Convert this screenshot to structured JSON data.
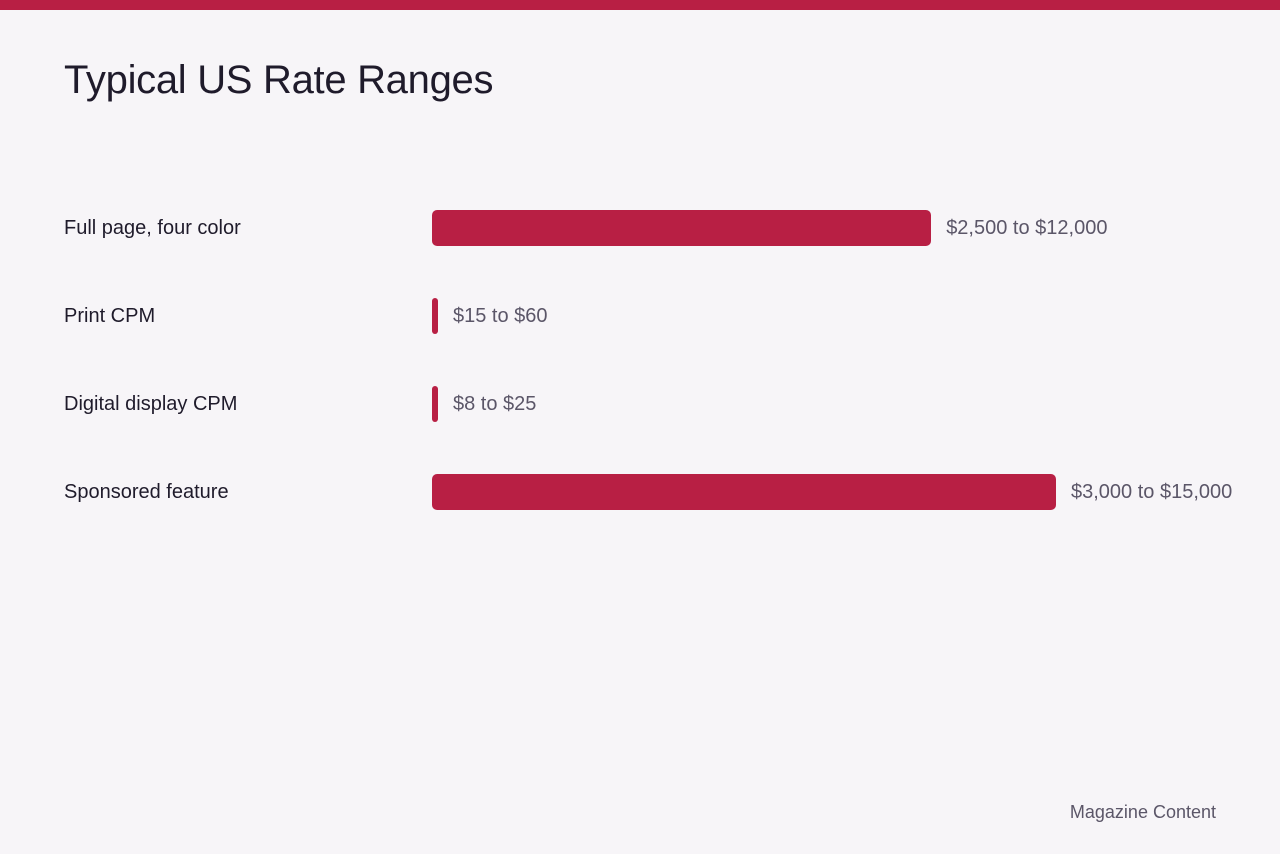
{
  "colors": {
    "accent": "#b81f44",
    "background": "#f7f5f8",
    "text": "#1f1b2b",
    "muted": "#5b5668"
  },
  "header": {
    "title": "Typical US Rate Ranges"
  },
  "chart_data": {
    "type": "bar",
    "orientation": "horizontal",
    "title": "Typical US Rate Ranges",
    "xlabel": "",
    "ylabel": "",
    "grid": false,
    "legend": "none",
    "categories": [
      "Full page, four color",
      "Print CPM",
      "Digital display CPM",
      "Sponsored feature"
    ],
    "series": [
      {
        "values": [
          12000,
          60,
          25,
          15000
        ],
        "labels": [
          "$2,500 to $12,000",
          "$15 to $60",
          "$8 to $25",
          "$3,000 to $15,000"
        ]
      }
    ],
    "xlim": [
      0,
      18000
    ]
  },
  "footer": {
    "source": "Magazine Content"
  }
}
